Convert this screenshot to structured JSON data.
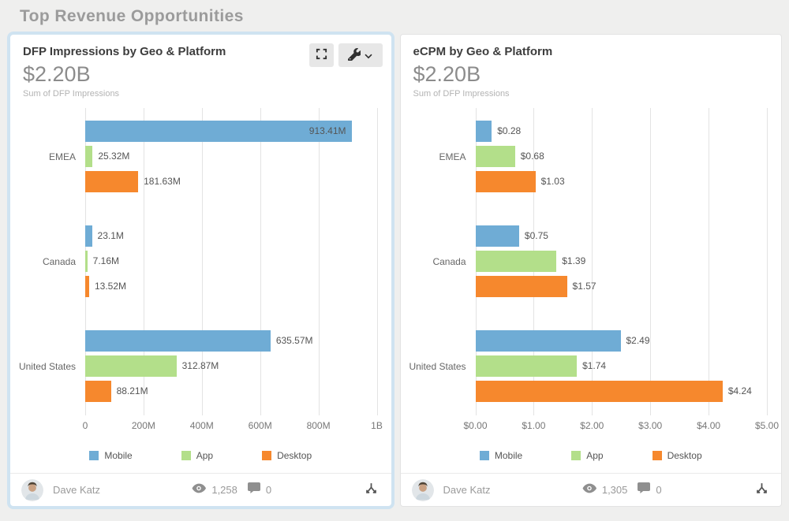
{
  "page": {
    "title": "Top Revenue Opportunities",
    "background": "#efefee"
  },
  "legend": [
    "Mobile",
    "App",
    "Desktop"
  ],
  "colors": {
    "mobile": "#6FACD5",
    "app": "#B3DF8A",
    "desktop": "#F6882D",
    "selected_ring": "#cfe3f1"
  },
  "icons": [
    "fullscreen-icon",
    "wrench-icon",
    "chevron-down-icon",
    "eye-icon",
    "comment-icon",
    "lineage-icon",
    "avatar"
  ],
  "cards": [
    {
      "title": "DFP Impressions by Geo & Platform",
      "summary_value": "$2.20B",
      "summary_label": "Sum of DFP Impressions",
      "selected": true,
      "chart_data": {
        "type": "bar",
        "orientation": "horizontal",
        "title": "DFP Impressions by Geo & Platform",
        "categories": [
          "EMEA",
          "Canada",
          "United States"
        ],
        "series": [
          {
            "name": "Mobile",
            "color": "#6FACD5",
            "values": [
              913.41,
              23.1,
              635.57
            ],
            "labels": [
              "913.41M",
              "23.1M",
              "635.57M"
            ]
          },
          {
            "name": "App",
            "color": "#B3DF8A",
            "values": [
              25.32,
              7.16,
              312.87
            ],
            "labels": [
              "25.32M",
              "7.16M",
              "312.87M"
            ]
          },
          {
            "name": "Desktop",
            "color": "#F6882D",
            "values": [
              181.63,
              13.52,
              88.21
            ],
            "labels": [
              "181.63M",
              "13.52M",
              "88.21M"
            ]
          }
        ],
        "unit": "M",
        "x_max": 1000,
        "x_ticks": [
          "0",
          "200M",
          "400M",
          "600M",
          "800M",
          "1B"
        ],
        "grid": true,
        "legend_position": "bottom"
      },
      "footer": {
        "author": "Dave Katz",
        "views": "1,258",
        "comments": "0"
      }
    },
    {
      "title": "eCPM by Geo & Platform",
      "summary_value": "$2.20B",
      "summary_label": "Sum of DFP Impressions",
      "selected": false,
      "chart_data": {
        "type": "bar",
        "orientation": "horizontal",
        "title": "eCPM by Geo & Platform",
        "categories": [
          "EMEA",
          "Canada",
          "United States"
        ],
        "series": [
          {
            "name": "Mobile",
            "color": "#6FACD5",
            "values": [
              0.28,
              0.75,
              2.49
            ],
            "labels": [
              "$0.28",
              "$0.75",
              "$2.49"
            ]
          },
          {
            "name": "App",
            "color": "#B3DF8A",
            "values": [
              0.68,
              1.39,
              1.74
            ],
            "labels": [
              "$0.68",
              "$1.39",
              "$1.74"
            ]
          },
          {
            "name": "Desktop",
            "color": "#F6882D",
            "values": [
              1.03,
              1.57,
              4.24
            ],
            "labels": [
              "$1.03",
              "$1.57",
              "$4.24"
            ]
          }
        ],
        "unit": "$",
        "x_max": 5,
        "x_ticks": [
          "$0.00",
          "$1.00",
          "$2.00",
          "$3.00",
          "$4.00",
          "$5.00"
        ],
        "grid": true,
        "legend_position": "bottom"
      },
      "footer": {
        "author": "Dave Katz",
        "views": "1,305",
        "comments": "0"
      }
    }
  ]
}
